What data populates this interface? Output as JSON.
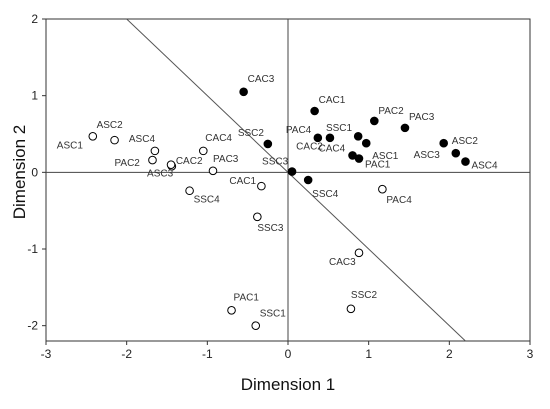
{
  "chart_data": {
    "type": "scatter",
    "xlabel": "Dimension 1",
    "ylabel": "Dimension 2",
    "xlim": [
      -3,
      3
    ],
    "ylim": [
      -2.2,
      2
    ],
    "xticks": [
      "-3",
      "-2",
      "-1",
      "0",
      "1",
      "2",
      "3"
    ],
    "yticks": [
      "-2",
      "-1",
      "0",
      "1",
      "2"
    ],
    "reference_lines": [
      "x = 0",
      "y = 0",
      "diagonal from (-2, 2) to (2.2, -2.2)"
    ],
    "marker_styles": {
      "filled": "#000000",
      "open": "#ffffff"
    },
    "points": [
      {
        "label": "CAC3",
        "x": -0.55,
        "y": 1.05,
        "filled": true
      },
      {
        "label": "SSC2",
        "x": -0.25,
        "y": 0.37,
        "filled": true
      },
      {
        "label": "CAC1",
        "x": 0.33,
        "y": 0.8,
        "filled": true
      },
      {
        "label": "PAC4",
        "x": 0.37,
        "y": 0.45,
        "filled": true
      },
      {
        "label": "SSC1",
        "x": 0.52,
        "y": 0.45,
        "filled": true
      },
      {
        "label": "CAC2",
        "x": 0.87,
        "y": 0.47,
        "filled": true
      },
      {
        "label": "ASC1",
        "x": 0.97,
        "y": 0.38,
        "filled": true
      },
      {
        "label": "PAC2",
        "x": 1.07,
        "y": 0.67,
        "filled": true
      },
      {
        "label": "PAC3",
        "x": 1.45,
        "y": 0.58,
        "filled": true
      },
      {
        "label": "CAC4",
        "x": 0.8,
        "y": 0.22,
        "filled": true
      },
      {
        "label": "PAC1",
        "x": 0.88,
        "y": 0.18,
        "filled": true
      },
      {
        "label": "ASC3",
        "x": 1.93,
        "y": 0.38,
        "filled": true
      },
      {
        "label": "ASC2",
        "x": 2.08,
        "y": 0.25,
        "filled": true
      },
      {
        "label": "ASC4",
        "x": 2.2,
        "y": 0.14,
        "filled": true
      },
      {
        "label": "SSC3",
        "x": 0.05,
        "y": 0.01,
        "filled": true
      },
      {
        "label": "SSC4",
        "x": 0.25,
        "y": -0.1,
        "filled": true
      },
      {
        "label": "ASC2",
        "x": -2.15,
        "y": 0.42,
        "filled": false
      },
      {
        "label": "ASC1",
        "x": -2.42,
        "y": 0.47,
        "filled": false
      },
      {
        "label": "ASC4",
        "x": -1.65,
        "y": 0.28,
        "filled": false
      },
      {
        "label": "PAC2",
        "x": -1.68,
        "y": 0.16,
        "filled": false
      },
      {
        "label": "CAC2",
        "x": -1.44,
        "y": 0.08,
        "filled": false
      },
      {
        "label": "ASC3",
        "x": -1.45,
        "y": 0.1,
        "filled": false
      },
      {
        "label": "CAC4",
        "x": -1.05,
        "y": 0.28,
        "filled": false
      },
      {
        "label": "PAC3",
        "x": -0.93,
        "y": 0.02,
        "filled": false
      },
      {
        "label": "SSC4",
        "x": -1.22,
        "y": -0.24,
        "filled": false
      },
      {
        "label": "CAC1",
        "x": -0.33,
        "y": -0.18,
        "filled": false
      },
      {
        "label": "SSC3",
        "x": -0.38,
        "y": -0.58,
        "filled": false
      },
      {
        "label": "PAC4",
        "x": 1.17,
        "y": -0.22,
        "filled": false
      },
      {
        "label": "CAC3",
        "x": 0.88,
        "y": -1.05,
        "filled": false
      },
      {
        "label": "SSC2",
        "x": 0.78,
        "y": -1.78,
        "filled": false
      },
      {
        "label": "PAC1",
        "x": -0.7,
        "y": -1.8,
        "filled": false
      },
      {
        "label": "SSC1",
        "x": -0.4,
        "y": -2.0,
        "filled": false
      }
    ]
  }
}
